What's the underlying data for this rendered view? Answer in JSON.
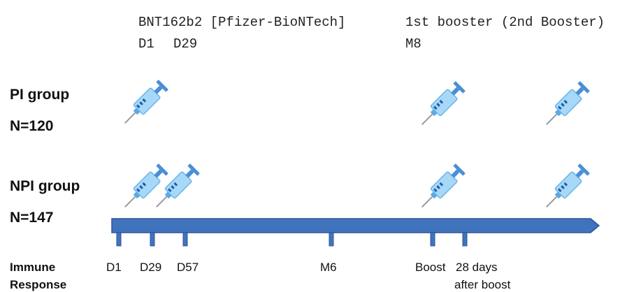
{
  "header": {
    "vaccine": "BNT162b2 [Pfizer-BioNTech]",
    "vaccine_doses": [
      "D1",
      "D29"
    ],
    "booster": "1st  booster  (2nd Booster)",
    "booster_dose": "M8"
  },
  "groups": [
    {
      "name": "PI group",
      "n": "N=120"
    },
    {
      "name": "NPI group",
      "n": "N=147"
    }
  ],
  "timeline": {
    "title": [
      "Immune",
      "Response"
    ],
    "points": [
      [
        "D1"
      ],
      [
        "D29"
      ],
      [
        "D57"
      ],
      [
        "M6"
      ],
      [
        "Boost"
      ],
      [
        "28 days",
        "after boost"
      ]
    ]
  }
}
